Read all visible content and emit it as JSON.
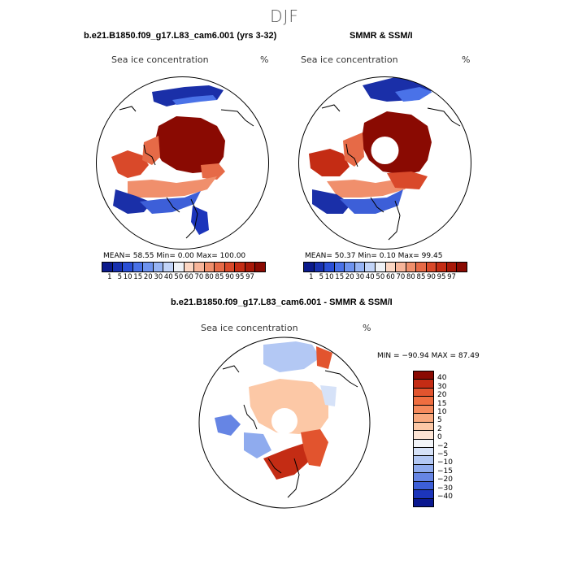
{
  "season": "DJF",
  "panels": {
    "model": {
      "title": "b.e21.B1850.f09_g17.L83_cam6.001 (yrs 3-32)",
      "subtitle_left": "Sea ice concentration",
      "subtitle_right": "%",
      "stats": "MEAN=  58.55  Min=    0.00  Max= 100.00"
    },
    "obs": {
      "title": "SMMR & SSM/I",
      "subtitle_left": "Sea ice concentration",
      "subtitle_right": "%",
      "stats": "MEAN=  50.37  Min=    0.10  Max=  99.45"
    },
    "diff": {
      "title": "b.e21.B1850.f09_g17.L83_cam6.001 - SMMR & SSM/I",
      "subtitle_left": "Sea ice concentration",
      "subtitle_right": "%",
      "stats": "MIN = −90.94  MAX =  87.49"
    }
  },
  "colorbar_conc": {
    "labels": [
      "1",
      "5",
      "10",
      "15",
      "20",
      "30",
      "40",
      "50",
      "60",
      "70",
      "80",
      "85",
      "90",
      "95",
      "97"
    ],
    "colors": [
      "#0b1a8c",
      "#1730b0",
      "#2a4fd6",
      "#4a72e8",
      "#6e93ef",
      "#97b4f4",
      "#c2d4f8",
      "#eef1f6",
      "#fbd6c3",
      "#f7b59a",
      "#f08f6c",
      "#e66a47",
      "#d9492a",
      "#c42c14",
      "#a81808",
      "#8a0a02"
    ]
  },
  "colorbar_diff": {
    "labels": [
      "40",
      "30",
      "20",
      "15",
      "10",
      "5",
      "2",
      "0",
      "−2",
      "−5",
      "−10",
      "−15",
      "−20",
      "−30",
      "−40"
    ],
    "colors": [
      "#8a0a02",
      "#c42c14",
      "#e2542e",
      "#f06e40",
      "#f68a5c",
      "#f9a97e",
      "#fcc8a6",
      "#fde4d4",
      "#f2f4f8",
      "#d6e2f8",
      "#b3c8f4",
      "#8fabee",
      "#6685e4",
      "#3d5fd8",
      "#1c35bb",
      "#0a1890"
    ]
  }
}
